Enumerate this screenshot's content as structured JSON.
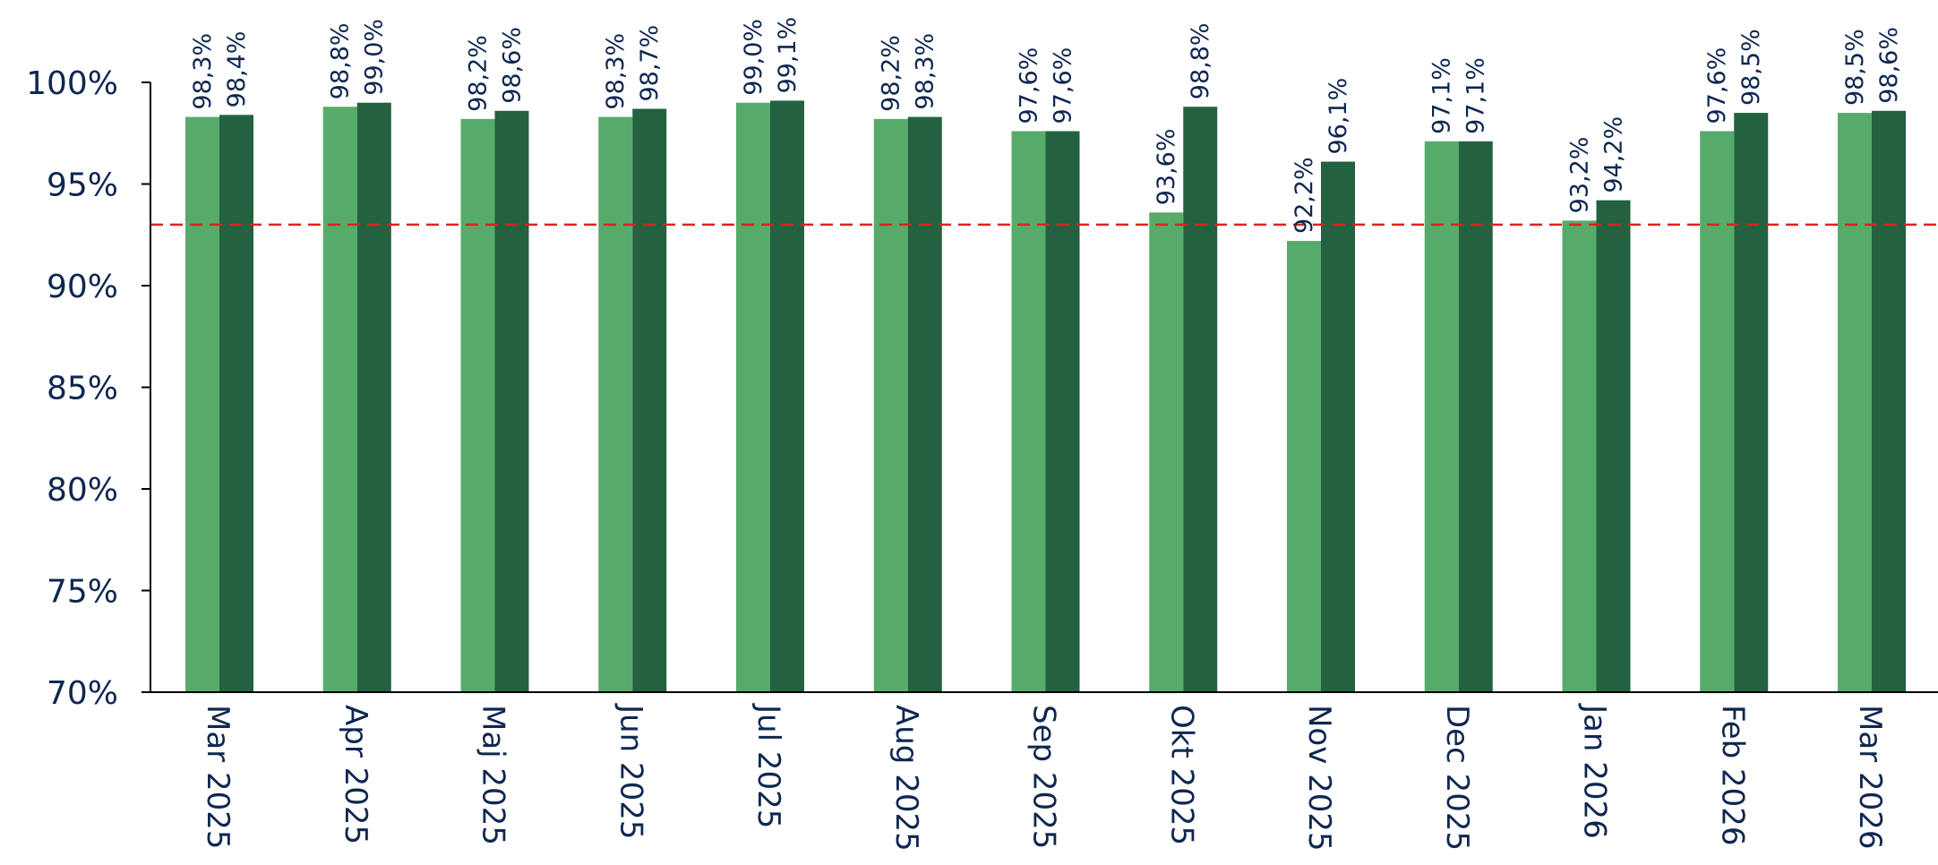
{
  "chart_data": {
    "type": "bar",
    "categories": [
      "Mar 2025",
      "Apr 2025",
      "Maj 2025",
      "Jun 2025",
      "Jul 2025",
      "Aug 2025",
      "Sep 2025",
      "Okt 2025",
      "Nov 2025",
      "Dec 2025",
      "Jan 2026",
      "Feb 2026",
      "Mar 2026"
    ],
    "series": [
      {
        "color": "#57ab6a",
        "values": [
          98.3,
          98.8,
          98.2,
          98.3,
          99.0,
          98.2,
          97.6,
          93.6,
          92.2,
          97.1,
          93.2,
          97.6,
          98.5
        ],
        "labels": [
          "98,3%",
          "98,8%",
          "98,2%",
          "98,3%",
          "99,0%",
          "98,2%",
          "97,6%",
          "93,6%",
          "92,2%",
          "97,1%",
          "93,2%",
          "97,6%",
          "98,5%"
        ]
      },
      {
        "color": "#236141",
        "values": [
          98.4,
          99.0,
          98.6,
          98.7,
          99.1,
          98.3,
          97.6,
          98.8,
          96.1,
          97.1,
          94.2,
          98.5,
          98.6
        ],
        "labels": [
          "98,4%",
          "99,0%",
          "98,6%",
          "98,7%",
          "99,1%",
          "98,3%",
          "97,6%",
          "98,8%",
          "96,1%",
          "97,1%",
          "94,2%",
          "98,5%",
          "98,6%"
        ]
      }
    ],
    "ylim": [
      70,
      100
    ],
    "yticks": [
      70,
      75,
      80,
      85,
      90,
      95,
      100
    ],
    "ytick_labels": [
      "70%",
      "75%",
      "80%",
      "85%",
      "90%",
      "95%",
      "100%"
    ],
    "target_line": {
      "value": 93,
      "color": "#e02020",
      "style": "dashed"
    },
    "grid": false,
    "legend": "none",
    "title": "",
    "xlabel": "",
    "ylabel": ""
  }
}
